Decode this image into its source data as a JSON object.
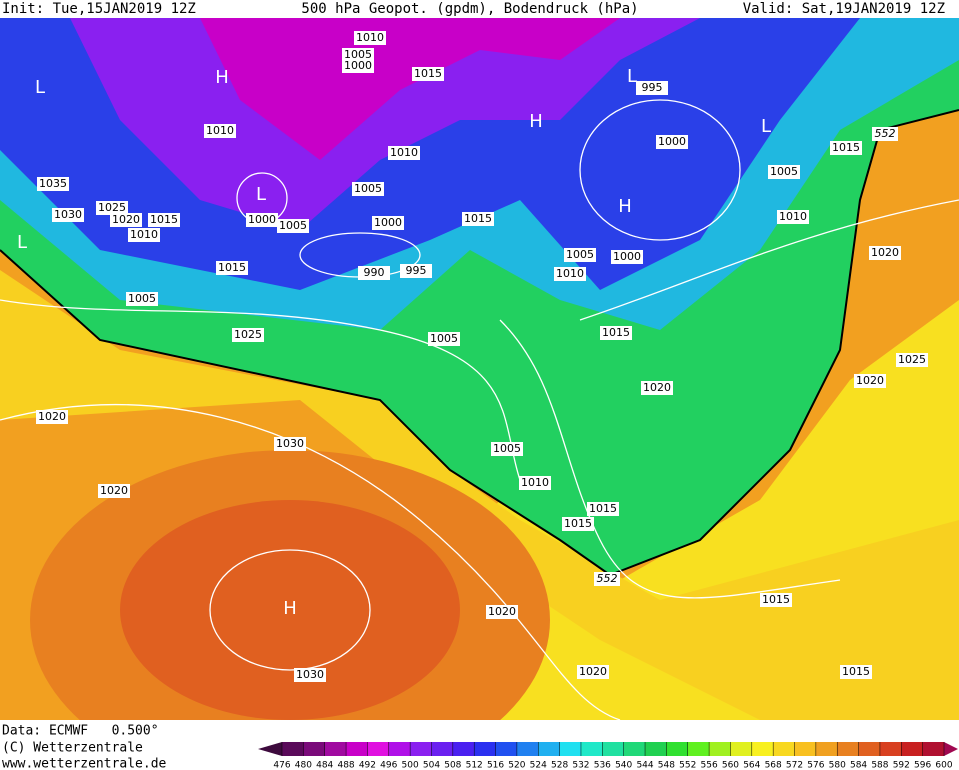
{
  "header": {
    "init": "Init: Tue,15JAN2019 12Z",
    "title": "500 hPa Geopot. (gpdm), Bodendruck (hPa)",
    "valid": "Valid: Sat,19JAN2019 12Z"
  },
  "isobar_labels": [
    1010,
    1005,
    1000,
    1015,
    995,
    1010,
    1010,
    1000,
    1015,
    1005,
    1035,
    1005,
    1030,
    1025,
    1020,
    1015,
    1010,
    1000,
    1005,
    1000,
    1015,
    1010,
    1005,
    1000,
    1010,
    1020,
    1015,
    990,
    995,
    1005,
    1015,
    1025,
    1005,
    1025,
    1020,
    1020,
    1020,
    1030,
    1005,
    1010,
    1020,
    1015,
    1015,
    1015,
    1020,
    1020,
    1015,
    1030
  ],
  "contour_labels": [
    552,
    552
  ],
  "pressure_centers": [
    "L",
    "H",
    "L",
    "H",
    "L",
    "L",
    "H",
    "L",
    "H"
  ],
  "footer": {
    "data": "Data: ECMWF   0.500°",
    "copyright": "(C) Wetterzentrale",
    "url": "www.wetterzentrale.de"
  },
  "colorbar": {
    "ticks": [
      476,
      480,
      484,
      488,
      492,
      496,
      500,
      504,
      508,
      512,
      516,
      520,
      524,
      528,
      532,
      536,
      540,
      544,
      548,
      552,
      556,
      560,
      564,
      568,
      572,
      576,
      580,
      584,
      588,
      592,
      596,
      600
    ],
    "colors": [
      "#3d0a3d",
      "#5a0a5a",
      "#7a0a7a",
      "#a00aa0",
      "#c800c8",
      "#e010e0",
      "#b010e8",
      "#8a20f0",
      "#6a20f0",
      "#4a20f0",
      "#2a30f0",
      "#2050f0",
      "#2080f0",
      "#20b0f0",
      "#20e0f0",
      "#20e8c8",
      "#20e0a0",
      "#20d878",
      "#20d050",
      "#30e030",
      "#60f020",
      "#a0f020",
      "#e0f020",
      "#f8f020",
      "#f8d820",
      "#f8c020",
      "#f0a020",
      "#e88020",
      "#e06020",
      "#d84020",
      "#c82020",
      "#b01030",
      "#a00850"
    ]
  }
}
